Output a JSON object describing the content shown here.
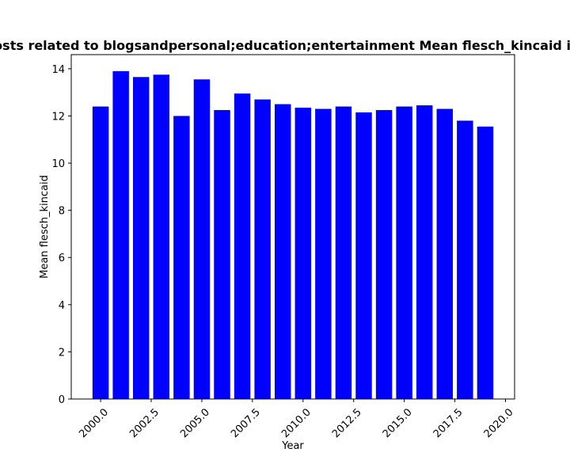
{
  "chart_data": {
    "type": "bar",
    "title": "Number of posts related to blogsandpersonal;education;entertainment Mean flesch_kincaid in posts by year",
    "xlabel": "Year",
    "ylabel": "Mean flesch_kincaid",
    "x": [
      2000,
      2001,
      2002,
      2003,
      2004,
      2005,
      2006,
      2007,
      2008,
      2009,
      2010,
      2011,
      2012,
      2013,
      2014,
      2015,
      2016,
      2017,
      2018,
      2019
    ],
    "values": [
      12.4,
      13.9,
      13.65,
      13.75,
      12.0,
      13.55,
      12.25,
      12.95,
      12.7,
      12.5,
      12.35,
      12.3,
      12.4,
      12.15,
      12.25,
      12.4,
      12.45,
      12.3,
      11.8,
      11.55
    ],
    "xlim": [
      1998.55,
      2020.45
    ],
    "ylim": [
      0,
      14.6
    ],
    "xticks": [
      2000.0,
      2002.5,
      2005.0,
      2007.5,
      2010.0,
      2012.5,
      2015.0,
      2017.5,
      2020.0
    ],
    "xtick_labels": [
      "2000.0",
      "2002.5",
      "2005.0",
      "2007.5",
      "2010.0",
      "2012.5",
      "2015.0",
      "2017.5",
      "2020.0"
    ],
    "yticks": [
      0,
      2,
      4,
      6,
      8,
      10,
      12,
      14
    ],
    "ytick_labels": [
      "0",
      "2",
      "4",
      "6",
      "8",
      "10",
      "12",
      "14"
    ],
    "bar_color": "#0000ff",
    "grid": false,
    "legend": "none"
  }
}
